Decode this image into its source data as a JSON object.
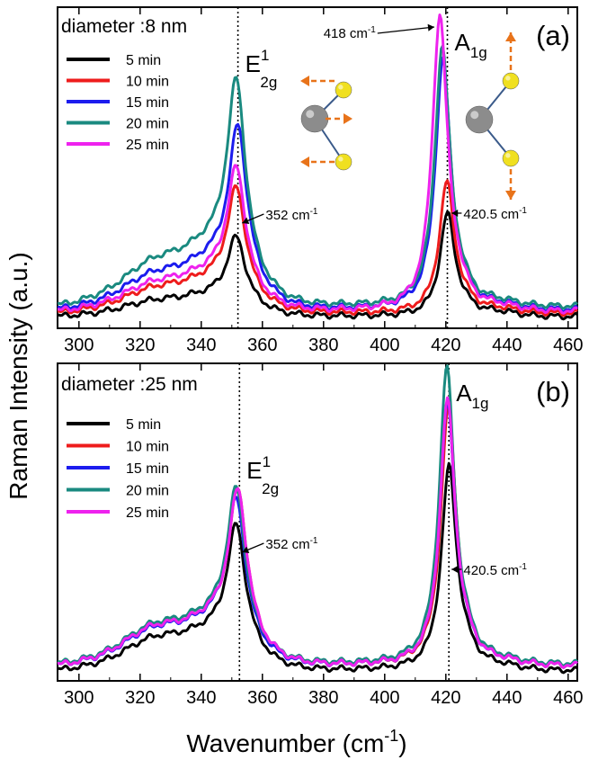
{
  "ylabel": "Raman Intensity (a.u.)",
  "xlabel": "Wavenumber (cm",
  "xlabel_sup": "-1",
  "xlabel_tail": ")",
  "colors": {
    "5 min": "#000000",
    "10 min": "#ee1c1c",
    "15 min": "#1c1cee",
    "20 min": "#1a8a80",
    "25 min": "#ee22ee",
    "arrow": "#e8731a",
    "atom_mo": "#8c8c8c",
    "atom_s": "#f0e020",
    "bond": "#3a5a8a"
  },
  "chart_data": [
    {
      "type": "line",
      "panel_label": "(a)",
      "legend_title": "diameter :8 nm",
      "legend_placement": "top-left",
      "xlim": [
        293,
        463
      ],
      "xticks": [
        300,
        320,
        340,
        360,
        380,
        400,
        420,
        440,
        460
      ],
      "ylim": [
        0,
        1.0
      ],
      "reference_lines": [
        352,
        420.5
      ],
      "mode_labels": [
        {
          "main": "E",
          "sup": "1",
          "sub": "2g",
          "x": 352
        },
        {
          "main": "A",
          "sub": "1g",
          "x": 420.5
        }
      ],
      "annotations": [
        {
          "text": "352 cm",
          "sup": "-1",
          "x": 352
        },
        {
          "text": "420.5 cm",
          "sup": "-1",
          "x": 420.5
        },
        {
          "text": "418 cm",
          "sup": "-1",
          "x": 418
        }
      ],
      "series": [
        {
          "name": "5 min",
          "baseline": 0.035,
          "e_pos": 351.5,
          "e_amp": 0.26,
          "a_pos": 420.5,
          "a_amp": 0.33
        },
        {
          "name": "10 min",
          "baseline": 0.045,
          "e_pos": 351.5,
          "e_amp": 0.41,
          "a_pos": 420.3,
          "a_amp": 0.42
        },
        {
          "name": "15 min",
          "baseline": 0.055,
          "e_pos": 352.0,
          "e_amp": 0.6,
          "a_pos": 419.0,
          "a_amp": 0.8
        },
        {
          "name": "20 min",
          "baseline": 0.065,
          "e_pos": 351.5,
          "e_amp": 0.74,
          "a_pos": 418.8,
          "a_amp": 0.83
        },
        {
          "name": "25 min",
          "baseline": 0.05,
          "e_pos": 351.5,
          "e_amp": 0.47,
          "a_pos": 418.0,
          "a_amp": 0.95
        }
      ]
    },
    {
      "type": "line",
      "panel_label": "(b)",
      "legend_title": "diameter :25 nm",
      "legend_placement": "top-left",
      "xlim": [
        293,
        463
      ],
      "xticks": [
        300,
        320,
        340,
        360,
        380,
        400,
        420,
        440,
        460
      ],
      "ylim": [
        0,
        1.0
      ],
      "reference_lines": [
        352.5,
        421
      ],
      "mode_labels": [
        {
          "main": "E",
          "sup": "1",
          "sub": "2g",
          "x": 352.5
        },
        {
          "main": "A",
          "sub": "1g",
          "x": 421
        }
      ],
      "annotations": [
        {
          "text": "352 cm",
          "sup": "-1",
          "x": 352
        },
        {
          "text": "420.5 cm",
          "sup": "-1",
          "x": 420.5
        }
      ],
      "series": [
        {
          "name": "5 min",
          "baseline": 0.03,
          "e_pos": 351.5,
          "e_amp": 0.48,
          "a_pos": 421.0,
          "a_amp": 0.66
        },
        {
          "name": "10 min",
          "baseline": 0.045,
          "e_pos": 352.0,
          "e_amp": 0.58,
          "a_pos": 420.8,
          "a_amp": 0.84
        },
        {
          "name": "15 min",
          "baseline": 0.045,
          "e_pos": 351.5,
          "e_amp": 0.55,
          "a_pos": 420.5,
          "a_amp": 0.85
        },
        {
          "name": "20 min",
          "baseline": 0.05,
          "e_pos": 351.5,
          "e_amp": 0.58,
          "a_pos": 420.3,
          "a_amp": 0.96
        },
        {
          "name": "25 min",
          "baseline": 0.045,
          "e_pos": 352.0,
          "e_amp": 0.58,
          "a_pos": 420.5,
          "a_amp": 0.86
        }
      ]
    }
  ]
}
